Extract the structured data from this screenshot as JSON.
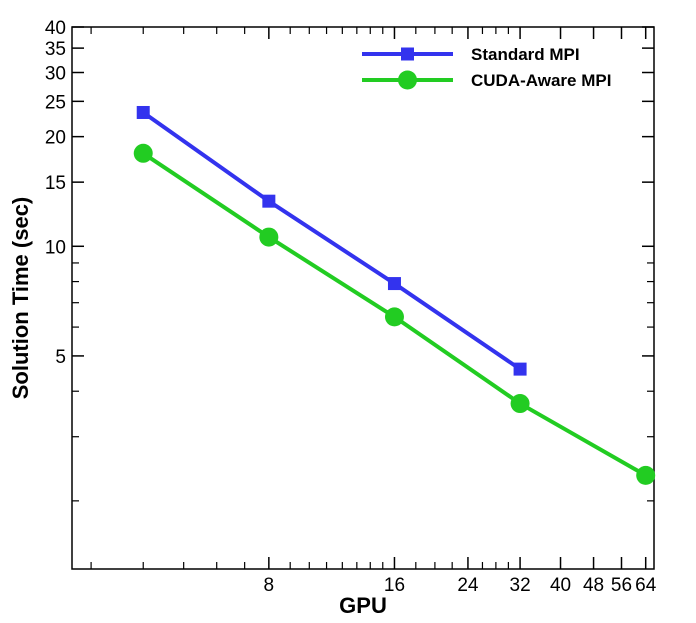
{
  "chart_data": {
    "type": "line",
    "title": "",
    "xlabel": "GPU",
    "ylabel": "Solution Time (sec)",
    "xscale": "log",
    "yscale": "log",
    "xlim": [
      2.7,
      67
    ],
    "ylim": [
      1.3,
      40
    ],
    "xticks_labeled": [
      8,
      16,
      24,
      32,
      40,
      48,
      56,
      64
    ],
    "xtick_labels": [
      "8",
      "16",
      "24",
      "32",
      "40",
      "48",
      "56",
      "64"
    ],
    "yticks_labeled": [
      5,
      10,
      15,
      20,
      25,
      30,
      35,
      40
    ],
    "ytick_labels": [
      "5",
      "10",
      "15",
      "20",
      "25",
      "30",
      "35",
      "40"
    ],
    "legend_position": "top-right",
    "series": [
      {
        "name": "Standard MPI",
        "color": "#3333ee",
        "marker": "square",
        "x": [
          4,
          8,
          16,
          32
        ],
        "y": [
          23.3,
          13.3,
          7.9,
          4.6
        ]
      },
      {
        "name": "CUDA-Aware MPI",
        "color": "#22cc22",
        "marker": "circle",
        "x": [
          4,
          8,
          16,
          32,
          64
        ],
        "y": [
          18.0,
          10.6,
          6.4,
          3.7,
          2.35
        ]
      }
    ]
  }
}
